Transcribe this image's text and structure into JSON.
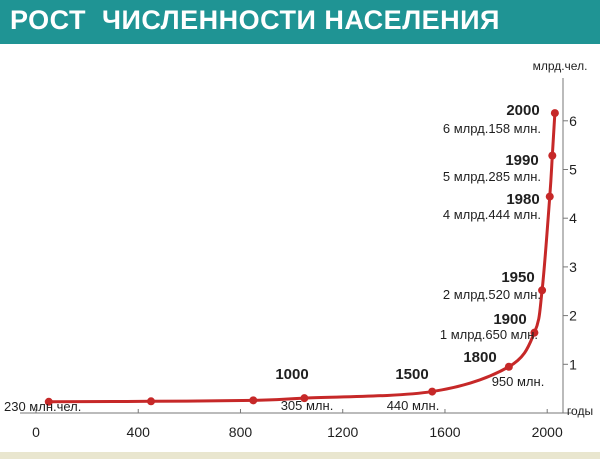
{
  "title": "РОСТ  ЧИСЛЕННОСТИ НАСЕЛЕНИЯ",
  "colors": {
    "banner": "#1f9494",
    "curve": "#c62828",
    "text": "#1f1f1f",
    "axis": "#777777"
  },
  "chart_data": {
    "type": "line",
    "title": "РОСТ  ЧИСЛЕННОСТИ НАСЕЛЕНИЯ",
    "xlabel": "годы",
    "ylabel": "млрд.чел.",
    "xlim": [
      -50,
      2050
    ],
    "ylim": [
      0,
      6.6
    ],
    "xticks": [
      0,
      400,
      800,
      1200,
      1600,
      2000
    ],
    "yticks": [
      1,
      2,
      3,
      4,
      5,
      6
    ],
    "grid": false,
    "series": [
      {
        "x": [
          50,
          450,
          850,
          1050,
          1550,
          1850,
          1950,
          1980,
          2010,
          2020,
          2030
        ],
        "y": [
          0.23,
          0.24,
          0.26,
          0.305,
          0.44,
          0.95,
          1.65,
          2.52,
          4.444,
          5.285,
          6.158
        ]
      }
    ],
    "markers": [
      {
        "x": 50,
        "y": 0.23
      },
      {
        "x": 450,
        "y": 0.24
      },
      {
        "x": 850,
        "y": 0.26
      },
      {
        "x": 1050,
        "y": 0.305
      },
      {
        "x": 1550,
        "y": 0.44
      },
      {
        "x": 1850,
        "y": 0.95
      },
      {
        "x": 1950,
        "y": 1.65
      },
      {
        "x": 1980,
        "y": 2.52
      },
      {
        "x": 2010,
        "y": 4.444
      },
      {
        "x": 2020,
        "y": 5.285
      },
      {
        "x": 2030,
        "y": 6.158
      }
    ],
    "annotations": [
      {
        "year": "",
        "value": "230 млн.чел."
      },
      {
        "year": "1000",
        "value": "305 млн."
      },
      {
        "year": "1500",
        "value": "440 млн."
      },
      {
        "year": "1800",
        "value": "950 млн."
      },
      {
        "year": "1900",
        "value": "1 млрд.650 млн."
      },
      {
        "year": "1950",
        "value": "2 млрд.520 млн."
      },
      {
        "year": "1980",
        "value": "4 млрд.444 млн."
      },
      {
        "year": "1990",
        "value": "5 млрд.285 млн."
      },
      {
        "year": "2000",
        "value": "6 млрд.158 млн."
      }
    ]
  }
}
